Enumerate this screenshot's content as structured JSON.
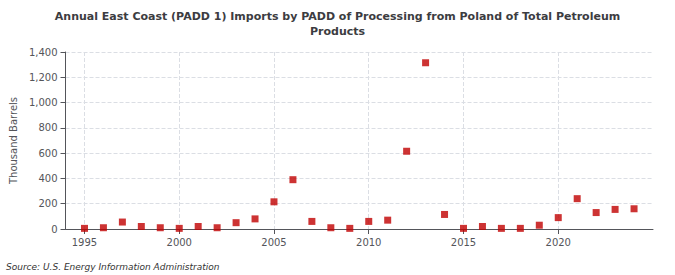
{
  "chart_data": {
    "type": "scatter",
    "title": "Annual East Coast (PADD 1) Imports by PADD of Processing from Poland of Total Petroleum\nProducts",
    "ylabel": "Thousand Barrels",
    "annotations": [
      "Source: U.S. Energy Information Administration"
    ],
    "x": [
      1995,
      1996,
      1997,
      1998,
      1999,
      2000,
      2001,
      2002,
      2003,
      2004,
      2005,
      2006,
      2007,
      2008,
      2009,
      2010,
      2011,
      2012,
      2013,
      2014,
      2015,
      2016,
      2017,
      2018,
      2019,
      2020,
      2021,
      2022,
      2023,
      2024
    ],
    "values": [
      5,
      10,
      55,
      20,
      10,
      5,
      20,
      10,
      50,
      80,
      215,
      390,
      60,
      10,
      5,
      60,
      70,
      615,
      1315,
      115,
      5,
      20,
      5,
      5,
      30,
      90,
      240,
      130,
      155,
      160
    ],
    "color": "#c00000",
    "marker": "square",
    "xlim": [
      1994,
      2025
    ],
    "xticks": [
      1995,
      2000,
      2005,
      2010,
      2015,
      2020
    ],
    "ylim": [
      0,
      1400
    ],
    "yticks": [
      0,
      200,
      400,
      600,
      800,
      {
        "value": 1000,
        "label": "1,000"
      },
      {
        "value": 1200,
        "label": "1,200"
      },
      {
        "value": 1400,
        "label": "1,400"
      }
    ],
    "grid": true
  }
}
